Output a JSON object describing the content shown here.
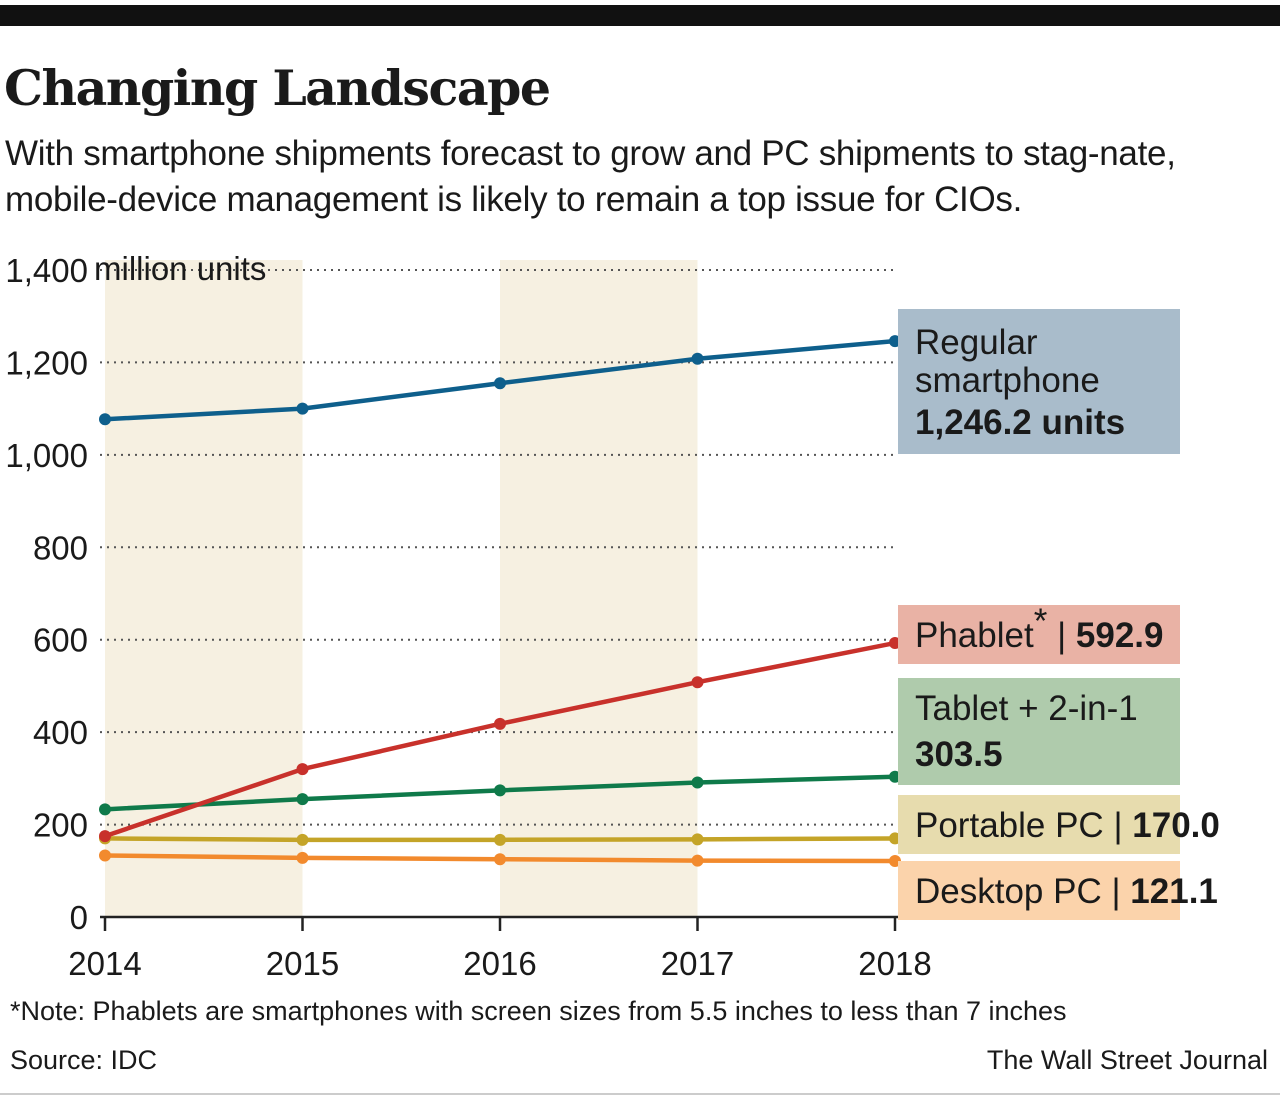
{
  "header": {
    "title": "Changing Landscape",
    "subtitle": "With smartphone shipments forecast to grow and PC shipments to stag-nate, mobile-device management is likely to remain a top issue for CIOs."
  },
  "chart_data": {
    "type": "line",
    "x": [
      2014,
      2015,
      2016,
      2017,
      2018
    ],
    "x_tick_labels": [
      "2014",
      "2015",
      "2016",
      "2017",
      "2018"
    ],
    "ylim": [
      0,
      1400
    ],
    "y_ticks": [
      0,
      200,
      400,
      600,
      800,
      1000,
      1200,
      1400
    ],
    "y_tick_labels": [
      "0",
      "200",
      "400",
      "600",
      "800",
      "1,000",
      "1,200",
      "1,400"
    ],
    "ylabel": "million units",
    "grid": "horizontal dotted",
    "shaded_years": [
      2014,
      2016
    ],
    "series": [
      {
        "name": "Regular smartphone",
        "values": [
          1077,
          1100,
          1155,
          1208,
          1246.2
        ],
        "color": "#0e5f8c",
        "label_lines": [
          "Regular",
          "smartphone"
        ],
        "label_value": "1,246.2 units",
        "box_color": "#a9bccb"
      },
      {
        "name": "Phablet",
        "values": [
          175,
          320,
          418,
          508,
          592.9
        ],
        "color": "#c8312b",
        "label_text": "Phablet",
        "label_sup": "*",
        "label_sep": "|",
        "label_value": "592.9",
        "box_color": "#e9b2a5"
      },
      {
        "name": "Tablet + 2-in-1",
        "values": [
          233,
          255,
          274,
          291,
          303.5
        ],
        "color": "#0f7a4a",
        "label_text": "Tablet + 2-in-1",
        "label_value": "303.5",
        "box_color": "#afcbac"
      },
      {
        "name": "Portable PC",
        "values": [
          170,
          167,
          167,
          168,
          170.0
        ],
        "color": "#c4a428",
        "label_text": "Portable PC",
        "label_sep": "|",
        "label_value": "170.0",
        "box_color": "#e7dcae"
      },
      {
        "name": "Desktop PC",
        "values": [
          133,
          128,
          125,
          122,
          121.1
        ],
        "color": "#f28a2d",
        "label_text": "Desktop PC",
        "label_sep": "|",
        "label_value": "121.1",
        "box_color": "#fbd3ab"
      }
    ]
  },
  "footer": {
    "note": "*Note: Phablets are smartphones with screen sizes from 5.5 inches to less than 7 inches",
    "source": "Source:  IDC",
    "credit": "The Wall Street Journal"
  }
}
